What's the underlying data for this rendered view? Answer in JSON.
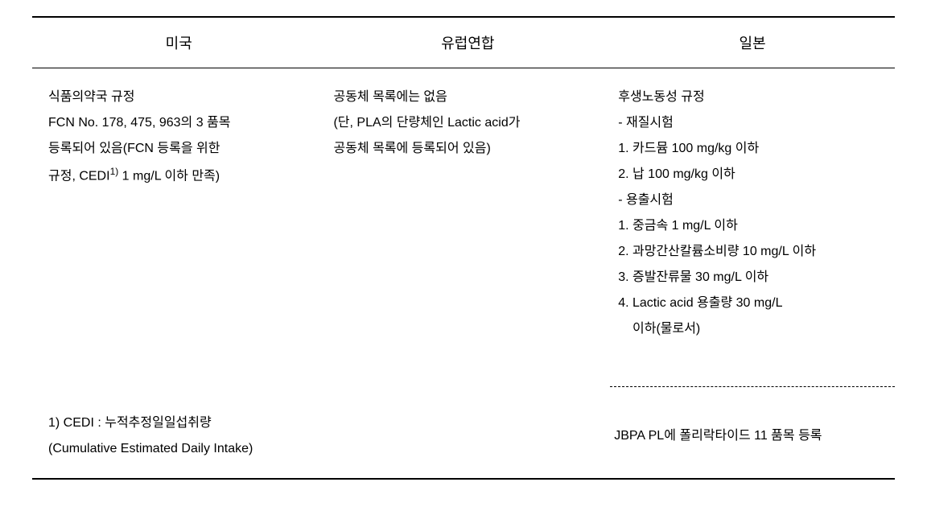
{
  "table": {
    "headers": {
      "col1": "미국",
      "col2": "유럽연합",
      "col3": "일본"
    },
    "content": {
      "usa": {
        "line1": "식품의약국 규정",
        "line2": "FCN No. 178, 475, 963의 3 품목",
        "line3": "등록되어 있음(FCN 등록을 위한",
        "line4_pre": "규정, CEDI",
        "line4_sup": "1)",
        "line4_post": " 1 mg/L 이하 만족)"
      },
      "eu": {
        "line1": "공동체 목록에는 없음",
        "line2": "(단, PLA의 단량체인 Lactic acid가",
        "line3": "공동체 목록에 등록되어 있음)"
      },
      "japan": {
        "line1": "후생노동성 규정",
        "line2": "- 재질시험",
        "line3": "1. 카드뮴 100 mg/kg 이하",
        "line4": "2. 납 100 mg/kg 이하",
        "line5": "- 용출시험",
        "line6": "1. 중금속 1 mg/L 이하",
        "line7": "2. 과망간산칼륨소비량 10 mg/L 이하",
        "line8": "3. 증발잔류물 30 mg/L 이하",
        "line9": "4. Lactic acid 용출량 30 mg/L",
        "line10": "    이하(물로서)"
      }
    },
    "footer": {
      "note_line1": "1) CEDI : 누적추정일일섭취량",
      "note_line2": "(Cumulative Estimated Daily Intake)",
      "japan_extra": "JBPA PL에 폴리락타이드 11 품목 등록"
    }
  },
  "styling": {
    "font_family": "Malgun Gothic",
    "header_font_size": 18,
    "content_font_size": 16,
    "line_height": 2.0,
    "border_top_width": 2,
    "border_mid_width": 1,
    "border_bottom_width": 2,
    "border_color": "#000000",
    "background_color": "#ffffff",
    "dashed_border_style": "dashed"
  }
}
